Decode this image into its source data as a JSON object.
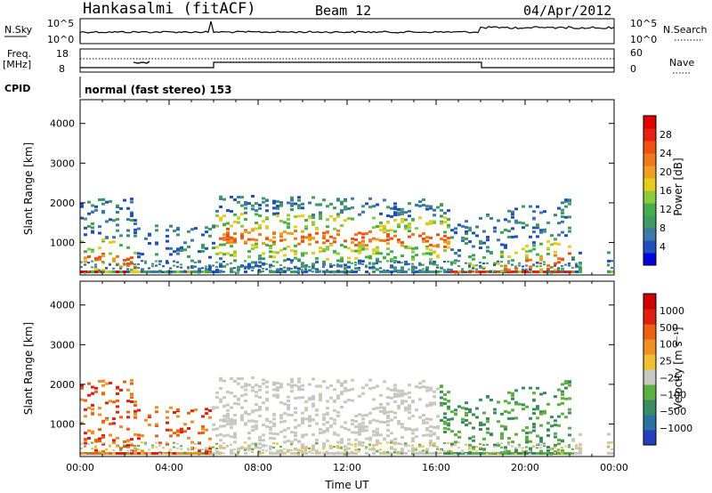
{
  "header": {
    "station": "Hankasalmi (fitACF)",
    "beam": "Beam 12",
    "date": "04/Apr/2012"
  },
  "top_panels": {
    "nsky_label": "N.Sky",
    "nsearch_label": "N.Search",
    "nsky_ticks": [
      "10^5",
      "10^0"
    ],
    "nsearch_ticks": [
      "10^5",
      "10^0"
    ],
    "freq_label": "Freq.",
    "freq_unit": "[MHz]",
    "freq_ticks": [
      "18",
      "8"
    ],
    "nave_label": "Nave",
    "nave_ticks": [
      "60",
      "0"
    ],
    "cpid_label": "CPID",
    "cpid_text": "normal (fast stereo) 153"
  },
  "chart_data": [
    {
      "type": "heatmap",
      "name": "power",
      "ylabel": "Slant Range [km]",
      "yticks": [
        "4000",
        "3000",
        "2000",
        "1000"
      ],
      "ytick_values": [
        4000,
        3000,
        2000,
        1000
      ],
      "ylim": [
        180,
        4600
      ],
      "xlim": [
        0,
        24
      ],
      "colorbar": {
        "label": "Power [dB]",
        "ticks": [
          "28",
          "24",
          "20",
          "16",
          "12",
          "8",
          "4"
        ],
        "tick_values": [
          28,
          24,
          20,
          16,
          12,
          8,
          4
        ],
        "range": [
          0,
          30
        ],
        "colors": [
          "#0000e0",
          "#2050c0",
          "#3c78a8",
          "#3f9a64",
          "#44b04c",
          "#8ccc3c",
          "#e8cc1c",
          "#f0a020",
          "#f07818",
          "#f05010",
          "#e82010",
          "#e00000"
        ]
      }
    },
    {
      "type": "heatmap",
      "name": "velocity",
      "ylabel": "Slant Range [km]",
      "yticks": [
        "4000",
        "3000",
        "2000",
        "1000"
      ],
      "ytick_values": [
        4000,
        3000,
        2000,
        1000
      ],
      "ylim": [
        180,
        4600
      ],
      "xlim": [
        0,
        24
      ],
      "xticks": [
        "00:00",
        "04:00",
        "08:00",
        "12:00",
        "16:00",
        "20:00",
        "00:00"
      ],
      "xtick_values": [
        0,
        4,
        8,
        12,
        16,
        20,
        24
      ],
      "xlabel": "Time UT",
      "colorbar": {
        "label": "Velocity [m s⁻¹]",
        "ticks": [
          "1000",
          "500",
          "100",
          "25",
          "−25",
          "−100",
          "−500",
          "−1000"
        ],
        "colors": [
          "#2040c0",
          "#2a70a0",
          "#3a8c60",
          "#5cb040",
          "#c8c8c0",
          "#f0c030",
          "#f09020",
          "#f06010",
          "#e02010",
          "#d00000"
        ]
      }
    }
  ]
}
